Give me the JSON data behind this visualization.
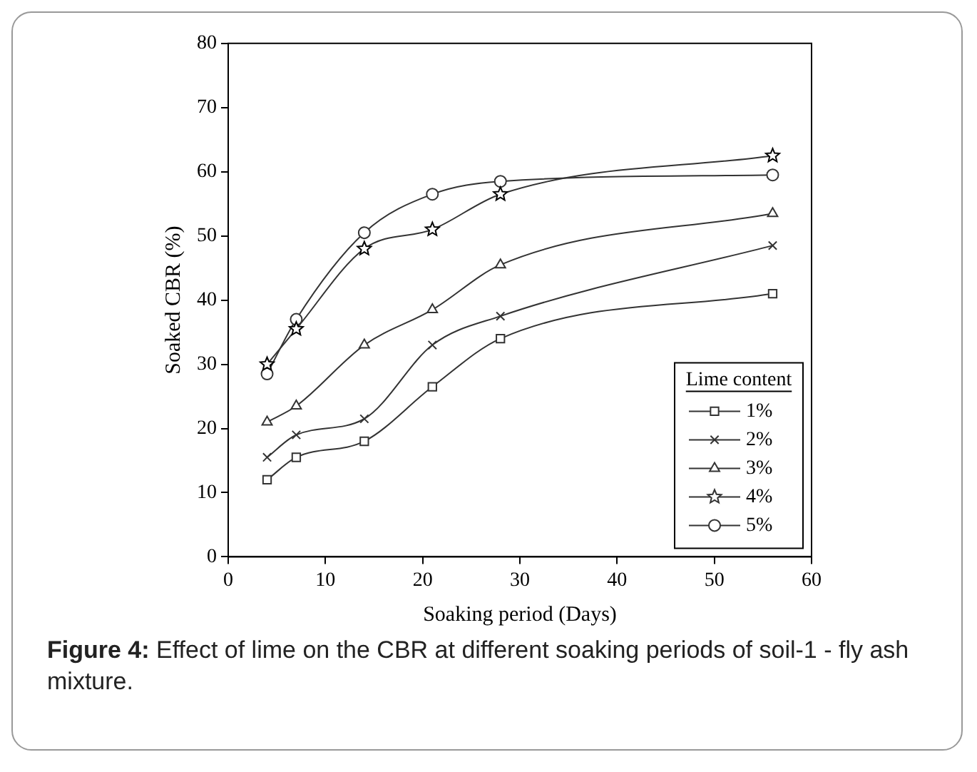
{
  "chart_data": {
    "type": "line",
    "xlabel": "Soaking period (Days)",
    "ylabel": "Soaked CBR (%)",
    "legend_title": "Lime content",
    "annotations": [
      "Figure 4: Effect of lime on the CBR at different soaking periods of soil-1 - fly ash mixture."
    ],
    "x": [
      4,
      7,
      14,
      21,
      28,
      56
    ],
    "series": [
      {
        "name": "1%",
        "color": "#333333",
        "marker": "square",
        "values": [
          12,
          15.5,
          18,
          26.5,
          34,
          41
        ]
      },
      {
        "name": "2%",
        "color": "#333333",
        "marker": "cross",
        "values": [
          15.5,
          19,
          21.5,
          33,
          37.5,
          48.5
        ]
      },
      {
        "name": "3%",
        "color": "#333333",
        "marker": "triangle",
        "values": [
          21,
          23.5,
          33,
          38.5,
          45.5,
          53.5
        ]
      },
      {
        "name": "4%",
        "color": "#333333",
        "marker": "star",
        "values": [
          30,
          35.5,
          48,
          51,
          56.5,
          62.5
        ]
      },
      {
        "name": "5%",
        "color": "#333333",
        "marker": "circle",
        "values": [
          28.5,
          37,
          50.5,
          56.5,
          58.5,
          59.5
        ]
      }
    ],
    "xlim": [
      0,
      60
    ],
    "xticks": [
      0,
      10,
      20,
      30,
      40,
      50,
      60
    ],
    "ylim": [
      0,
      80
    ],
    "yticks": [
      0,
      10,
      20,
      30,
      40,
      50,
      60,
      70,
      80
    ],
    "grid": false,
    "legend": "bottom right",
    "line_style": "solid"
  }
}
